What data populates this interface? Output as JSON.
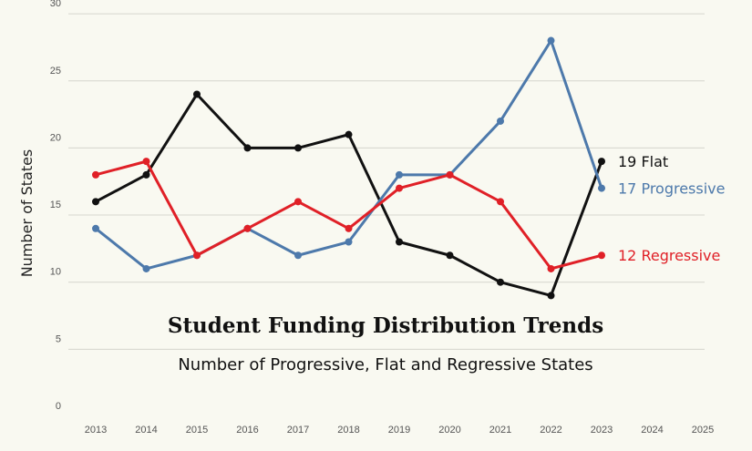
{
  "chart_data": {
    "type": "line",
    "title": "Student Funding Distribution Trends",
    "subtitle": "Number of Progressive, Flat and Regressive States",
    "ylabel": "Number of States",
    "xlabel": "",
    "x": [
      2013,
      2014,
      2015,
      2016,
      2017,
      2018,
      2019,
      2020,
      2021,
      2022,
      2023
    ],
    "x_ticks": [
      "2013",
      "2014",
      "2015",
      "2016",
      "2017",
      "2018",
      "2019",
      "2020",
      "2021",
      "2022",
      "2023",
      "2024",
      "2025"
    ],
    "y_ticks": [
      "0",
      "5",
      "10",
      "15",
      "20",
      "25",
      "30"
    ],
    "ylim": [
      0,
      30
    ],
    "xlim": [
      2013,
      2025
    ],
    "grid": true,
    "series": [
      {
        "name": "Flat",
        "end_label": "19 Flat",
        "color": "#111111",
        "values": [
          16,
          18,
          24,
          20,
          20,
          21,
          13,
          12,
          10,
          9,
          19
        ]
      },
      {
        "name": "Progressive",
        "end_label": "17 Progressive",
        "color": "#4d79ab",
        "values": [
          14,
          11,
          12,
          14,
          12,
          13,
          18,
          18,
          22,
          28,
          17
        ]
      },
      {
        "name": "Regressive",
        "end_label": "12 Regressive",
        "color": "#e02027",
        "values": [
          18,
          19,
          12,
          14,
          16,
          14,
          17,
          18,
          16,
          11,
          12
        ]
      }
    ]
  }
}
